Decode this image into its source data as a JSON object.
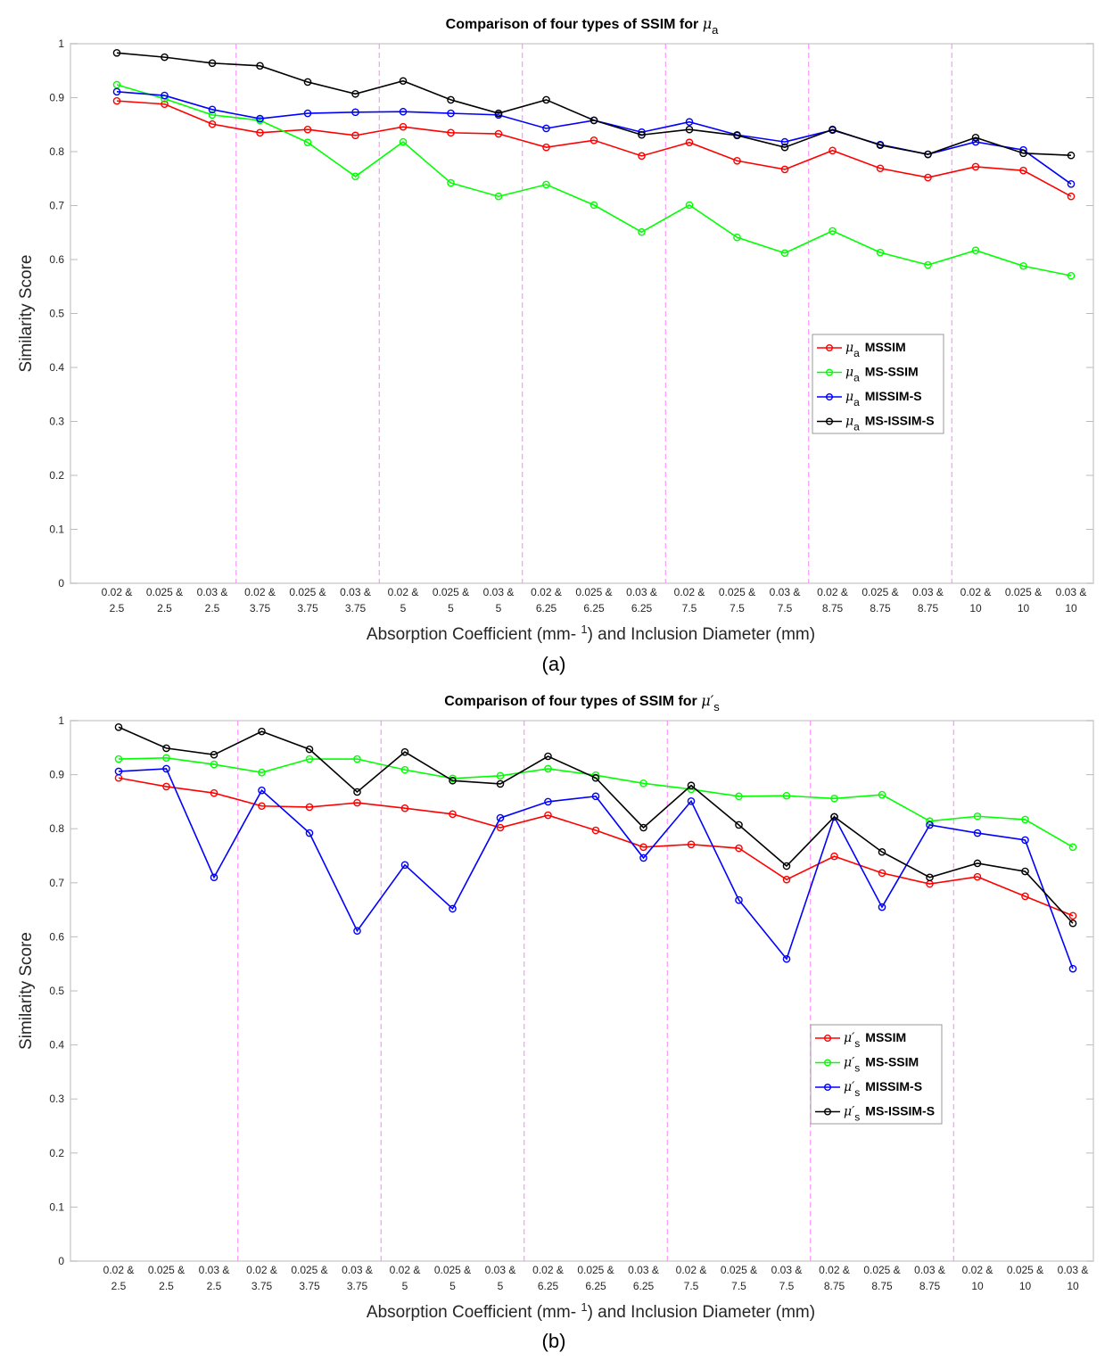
{
  "chart_data": [
    {
      "type": "line",
      "title_prefix": "Comparison of four types of SSIM for ",
      "title_symbol": "μ",
      "title_sub": "a",
      "xlabel": "Absorption Coefficient (mm- 1) and Inclusion Diameter (mm)",
      "xlabel_parts": [
        "Absorption Coefficient (mm",
        "- ",
        "1",
        ") and Inclusion Diameter (mm)"
      ],
      "ylabel": "Similarity Score",
      "ylim": [
        0,
        1
      ],
      "yticks": [
        "0",
        "0.1",
        "0.2",
        "0.3",
        "0.4",
        "0.5",
        "0.6",
        "0.7",
        "0.8",
        "0.9",
        "1"
      ],
      "caption": "(a)",
      "legend_position": "center-right",
      "categories": [
        [
          "0.02 &",
          "2.5"
        ],
        [
          "0.025 &",
          "2.5"
        ],
        [
          "0.03 &",
          "2.5"
        ],
        [
          "0.02 &",
          "3.75"
        ],
        [
          "0.025 &",
          "3.75"
        ],
        [
          "0.03 &",
          "3.75"
        ],
        [
          "0.02 &",
          "5"
        ],
        [
          "0.025 &",
          "5"
        ],
        [
          "0.03 &",
          "5"
        ],
        [
          "0.02 &",
          "6.25"
        ],
        [
          "0.025 &",
          "6.25"
        ],
        [
          "0.03 &",
          "6.25"
        ],
        [
          "0.02 &",
          "7.5"
        ],
        [
          "0.025 &",
          "7.5"
        ],
        [
          "0.03 &",
          "7.5"
        ],
        [
          "0.02 &",
          "8.75"
        ],
        [
          "0.025 &",
          "8.75"
        ],
        [
          "0.03 &",
          "8.75"
        ],
        [
          "0.02 &",
          "10"
        ],
        [
          "0.025 &",
          "10"
        ],
        [
          "0.03 &",
          "10"
        ]
      ],
      "series": [
        {
          "symbol": "μ",
          "sub": "a",
          "name": "MSSIM",
          "color": "#ff0000",
          "values": [
            0.894,
            0.888,
            0.851,
            0.835,
            0.841,
            0.83,
            0.846,
            0.835,
            0.833,
            0.808,
            0.821,
            0.792,
            0.817,
            0.783,
            0.767,
            0.802,
            0.769,
            0.752,
            0.772,
            0.765,
            0.717
          ]
        },
        {
          "symbol": "μ",
          "sub": "a",
          "name": "MS-SSIM",
          "color": "#00ff00",
          "values": [
            0.924,
            0.898,
            0.868,
            0.858,
            0.817,
            0.754,
            0.818,
            0.742,
            0.717,
            0.739,
            0.701,
            0.651,
            0.701,
            0.641,
            0.612,
            0.653,
            0.613,
            0.59,
            0.617,
            0.588,
            0.57
          ]
        },
        {
          "symbol": "μ",
          "sub": "a",
          "name": "MISSIM-S",
          "color": "#0000ff",
          "values": [
            0.911,
            0.904,
            0.878,
            0.861,
            0.871,
            0.873,
            0.874,
            0.871,
            0.868,
            0.843,
            0.858,
            0.836,
            0.855,
            0.831,
            0.818,
            0.84,
            0.813,
            0.795,
            0.818,
            0.803,
            0.74
          ]
        },
        {
          "symbol": "μ",
          "sub": "a",
          "name": "MS-ISSIM-S",
          "color": "#000000",
          "values": [
            0.983,
            0.975,
            0.964,
            0.959,
            0.929,
            0.907,
            0.931,
            0.896,
            0.871,
            0.896,
            0.858,
            0.831,
            0.841,
            0.83,
            0.808,
            0.841,
            0.812,
            0.795,
            0.826,
            0.797,
            0.793
          ]
        }
      ]
    },
    {
      "type": "line",
      "title_prefix": "Comparison of four types of SSIM for ",
      "title_symbol": "μ′",
      "title_sub": "s",
      "xlabel": "Absorption Coefficient (mm- 1) and Inclusion Diameter (mm)",
      "xlabel_parts": [
        "Absorption Coefficient (mm",
        "- ",
        "1",
        ") and Inclusion Diameter (mm)"
      ],
      "ylabel": "Similarity Score",
      "ylim": [
        0,
        1
      ],
      "yticks": [
        "0",
        "0.1",
        "0.2",
        "0.3",
        "0.4",
        "0.5",
        "0.6",
        "0.7",
        "0.8",
        "0.9",
        "1"
      ],
      "caption": "(b)",
      "legend_position": "center-right",
      "categories": [
        [
          "0.02 &",
          "2.5"
        ],
        [
          "0.025 &",
          "2.5"
        ],
        [
          "0.03 &",
          "2.5"
        ],
        [
          "0.02 &",
          "3.75"
        ],
        [
          "0.025 &",
          "3.75"
        ],
        [
          "0.03 &",
          "3.75"
        ],
        [
          "0.02 &",
          "5"
        ],
        [
          "0.025 &",
          "5"
        ],
        [
          "0.03 &",
          "5"
        ],
        [
          "0.02 &",
          "6.25"
        ],
        [
          "0.025 &",
          "6.25"
        ],
        [
          "0.03 &",
          "6.25"
        ],
        [
          "0.02 &",
          "7.5"
        ],
        [
          "0.025 &",
          "7.5"
        ],
        [
          "0.03 &",
          "7.5"
        ],
        [
          "0.02 &",
          "8.75"
        ],
        [
          "0.025 &",
          "8.75"
        ],
        [
          "0.03 &",
          "8.75"
        ],
        [
          "0.02 &",
          "10"
        ],
        [
          "0.025 &",
          "10"
        ],
        [
          "0.03 &",
          "10"
        ]
      ],
      "series": [
        {
          "symbol": "μ′",
          "sub": "s",
          "name": "MSSIM",
          "color": "#ff0000",
          "values": [
            0.894,
            0.878,
            0.866,
            0.842,
            0.84,
            0.848,
            0.838,
            0.827,
            0.802,
            0.825,
            0.797,
            0.766,
            0.771,
            0.764,
            0.706,
            0.749,
            0.718,
            0.698,
            0.711,
            0.675,
            0.639
          ]
        },
        {
          "symbol": "μ′",
          "sub": "s",
          "name": "MS-SSIM",
          "color": "#00ff00",
          "values": [
            0.929,
            0.931,
            0.919,
            0.904,
            0.929,
            0.929,
            0.909,
            0.893,
            0.898,
            0.911,
            0.899,
            0.884,
            0.873,
            0.86,
            0.861,
            0.856,
            0.863,
            0.814,
            0.823,
            0.817,
            0.766
          ]
        },
        {
          "symbol": "μ′",
          "sub": "s",
          "name": "MISSIM-S",
          "color": "#0000ff",
          "values": [
            0.906,
            0.911,
            0.71,
            0.871,
            0.792,
            0.611,
            0.733,
            0.652,
            0.82,
            0.85,
            0.86,
            0.746,
            0.851,
            0.668,
            0.559,
            0.822,
            0.655,
            0.807,
            0.792,
            0.779,
            0.541
          ]
        },
        {
          "symbol": "μ′",
          "sub": "s",
          "name": "MS-ISSIM-S",
          "color": "#000000",
          "values": [
            0.988,
            0.949,
            0.937,
            0.98,
            0.947,
            0.868,
            0.942,
            0.889,
            0.883,
            0.934,
            0.894,
            0.802,
            0.88,
            0.807,
            0.731,
            0.822,
            0.757,
            0.71,
            0.736,
            0.721,
            0.625
          ]
        }
      ]
    }
  ]
}
